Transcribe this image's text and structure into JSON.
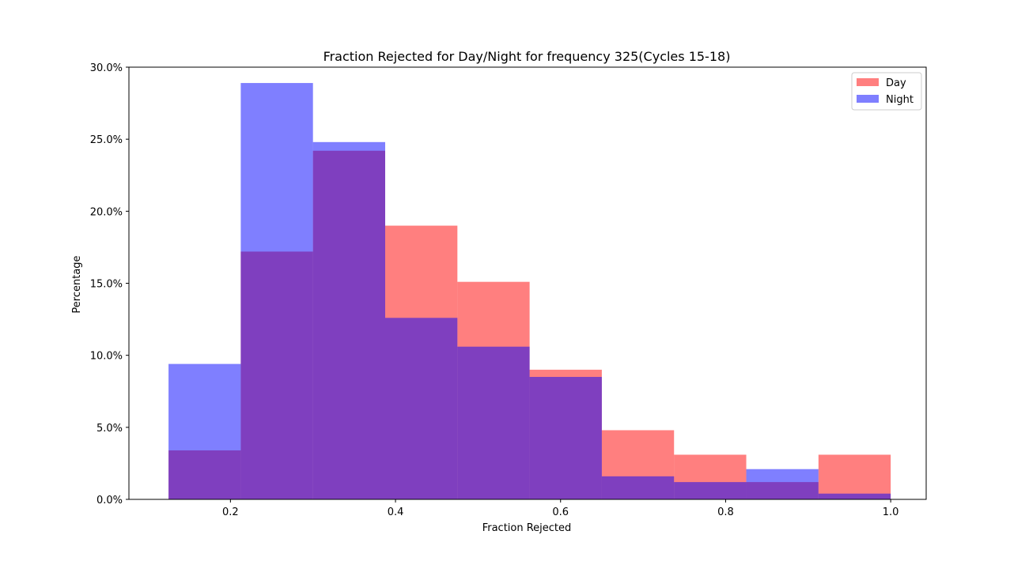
{
  "chart_data": {
    "type": "bar",
    "title": "Fraction Rejected for Day/Night for frequency 325(Cycles 15-18)",
    "xlabel": "Fraction Rejected",
    "ylabel": "Percentage",
    "xlim": [
      0.077,
      1.043
    ],
    "ylim": [
      0,
      0.3
    ],
    "xticks": [
      0.2,
      0.4,
      0.6,
      0.8,
      1.0
    ],
    "xtick_labels": [
      "0.2",
      "0.4",
      "0.6",
      "0.8",
      "1.0"
    ],
    "yticks": [
      0,
      0.05,
      0.1,
      0.15,
      0.2,
      0.25,
      0.3
    ],
    "ytick_labels": [
      "0.0%",
      "5.0%",
      "10.0%",
      "15.0%",
      "20.0%",
      "25.0%",
      "30.0%"
    ],
    "bin_edges": [
      0.125,
      0.2125,
      0.3,
      0.3875,
      0.475,
      0.5625,
      0.65,
      0.7375,
      0.825,
      0.9125,
      1.0
    ],
    "grid": false,
    "legend_position": "top-right",
    "series": [
      {
        "name": "Day",
        "color": "#ff0000",
        "opacity": 0.5,
        "values": [
          0.034,
          0.172,
          0.242,
          0.19,
          0.151,
          0.09,
          0.048,
          0.031,
          0.012,
          0.031
        ]
      },
      {
        "name": "Night",
        "color": "#0000ff",
        "opacity": 0.5,
        "values": [
          0.094,
          0.289,
          0.248,
          0.126,
          0.106,
          0.085,
          0.016,
          0.012,
          0.021,
          0.004
        ]
      }
    ]
  }
}
